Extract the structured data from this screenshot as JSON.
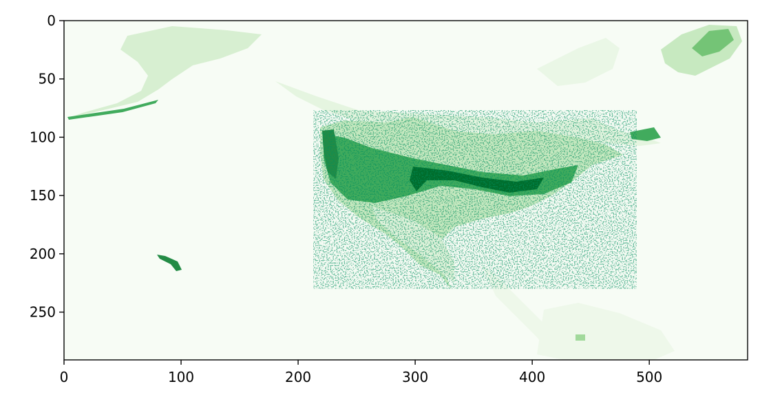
{
  "chart_data": {
    "type": "heatmap",
    "title": "",
    "xlabel": "",
    "ylabel": "",
    "image_size": [
      584,
      291
    ],
    "xlim": [
      0,
      584
    ],
    "ylim": [
      291,
      0
    ],
    "x_ticks": [
      0,
      100,
      200,
      300,
      400,
      500
    ],
    "y_ticks": [
      0,
      50,
      100,
      150,
      200,
      250
    ],
    "x_tick_labels": [
      "0",
      "100",
      "200",
      "300",
      "400",
      "500"
    ],
    "y_tick_labels": [
      "0",
      "50",
      "100",
      "150",
      "200",
      "250"
    ],
    "colormap": "Greens",
    "colors": {
      "low": "#f7fcf5",
      "mid": "#74c476",
      "high": "#00441b"
    },
    "grid": false,
    "legend": "none"
  }
}
